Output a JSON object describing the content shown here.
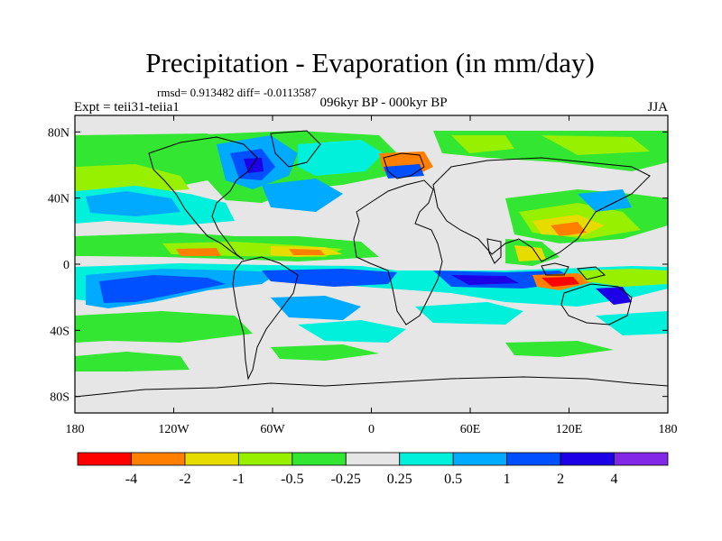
{
  "title": "Precipitation - Evaporation (in mm/day)",
  "stats": "rmsd= 0.913482 diff= -0.0113587",
  "experiment": "Expt = teii31-teiia1",
  "period": "096kyr BP - 000kyr BP",
  "season": "JJA",
  "axes": {
    "lon_ticks": [
      {
        "value": -180,
        "label": "180"
      },
      {
        "value": -120,
        "label": "120W"
      },
      {
        "value": -60,
        "label": "60W"
      },
      {
        "value": 0,
        "label": "0"
      },
      {
        "value": 60,
        "label": "60E"
      },
      {
        "value": 120,
        "label": "120E"
      },
      {
        "value": 180,
        "label": "180"
      }
    ],
    "lat_ticks": [
      {
        "value": 80,
        "label": "80N"
      },
      {
        "value": 40,
        "label": "40N"
      },
      {
        "value": 0,
        "label": "0"
      },
      {
        "value": -40,
        "label": "40S"
      },
      {
        "value": -80,
        "label": "80S"
      }
    ],
    "lon_range": [
      -180,
      180
    ],
    "lat_range": [
      -90,
      90
    ]
  },
  "colorbar": {
    "colors": [
      "#ff0000",
      "#ff8000",
      "#e6dc00",
      "#96f000",
      "#32e632",
      "#e6e6e6",
      "#00f0dc",
      "#00aaff",
      "#0050ff",
      "#1e00e6",
      "#8228e6"
    ],
    "labels": [
      "-4",
      "-2",
      "-1",
      "-0.5",
      "-0.25",
      "0.25",
      "0.5",
      "1",
      "2",
      "4"
    ]
  },
  "colors": {
    "land": "#e6e6e6",
    "coast": "#000000"
  }
}
